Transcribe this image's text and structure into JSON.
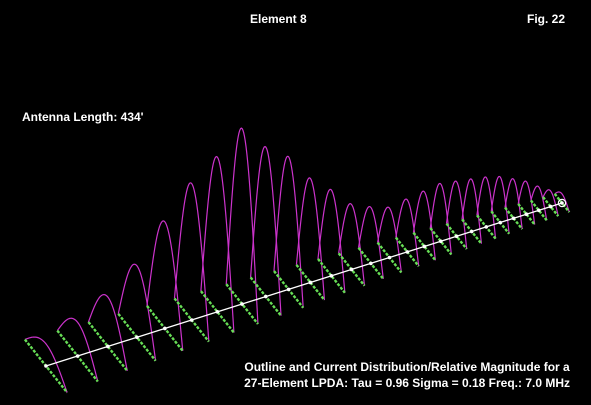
{
  "header": {
    "title": "Element 8",
    "figure": "Fig. 22"
  },
  "annotation": {
    "antenna_length": "Antenna Length:  434'"
  },
  "caption": {
    "line1": "Outline and Current Distribution/Relative Magnitude for a",
    "line2": "27-Element LPDA: Tau = 0.96  Sigma = 0.18  Freq.:  7.0 MHz"
  },
  "diagram": {
    "element_count": 27,
    "highlighted_element": 8,
    "colors": {
      "background": "#000000",
      "elements": "#66dd55",
      "current_curves": "#cc33cc",
      "boom": "#ffffff",
      "text": "#ffffff"
    },
    "relative_current_magnitude": [
      0.17,
      0.26,
      0.38,
      0.55,
      0.82,
      1.05,
      1.19,
      1.35,
      1.15,
      1.02,
      0.8,
      0.66,
      0.5,
      0.43,
      0.38,
      0.4,
      0.42,
      0.44,
      0.42,
      0.4,
      0.38,
      0.35,
      0.3,
      0.25,
      0.18,
      0.12,
      0.07
    ]
  }
}
